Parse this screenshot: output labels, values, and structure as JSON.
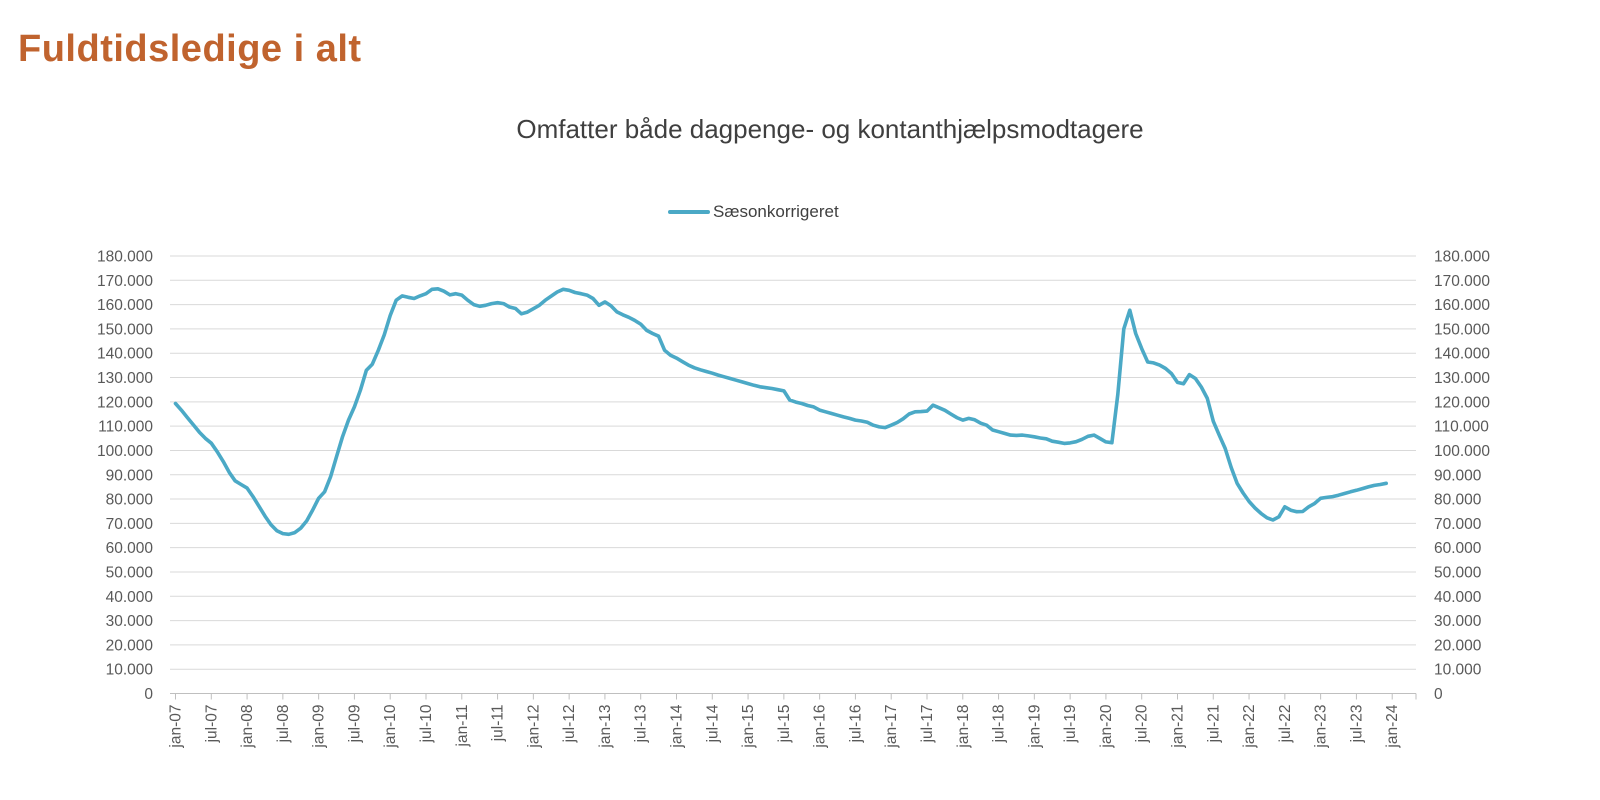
{
  "page": {
    "title": "Fuldtidsledige i alt"
  },
  "chart": {
    "title": "Omfatter både dagpenge- og kontanthjælpsmodtagere",
    "legend": {
      "label": "Sæsonkorrigeret"
    }
  },
  "chart_data": {
    "type": "line",
    "title": "Omfatter både dagpenge- og kontanthjælpsmodtagere",
    "x_monthly_start": "jan-07",
    "x_monthly_end": "dec-23",
    "x_tick_labels": [
      "jan-07",
      "jul-07",
      "jan-08",
      "jul-08",
      "jan-09",
      "jul-09",
      "jan-10",
      "jul-10",
      "jan-11",
      "jul-11",
      "jan-12",
      "jul-12",
      "jan-13",
      "jul-13",
      "jan-14",
      "jul-14",
      "jan-15",
      "jul-15",
      "jan-16",
      "jul-16",
      "jan-17",
      "jul-17",
      "jan-18",
      "jul-18",
      "jan-19",
      "jul-19",
      "jan-20",
      "jul-20",
      "jan-21",
      "jul-21",
      "jan-22",
      "jul-22",
      "jan-23",
      "jul-23",
      "jan-24"
    ],
    "x_tick_every_months": 6,
    "ylim": [
      0,
      180000
    ],
    "y_tick_step": 10000,
    "dual_y_axis": true,
    "grid": true,
    "legend_position": "top-center",
    "colors": {
      "line": "#4BA9C6",
      "grid": "#D9D9D9",
      "axis": "#BFBFBF",
      "tick_text": "#595959",
      "chart_title_text": "#3F3F3F",
      "page_title_text": "#C0632E",
      "legend_text": "#404040"
    },
    "series": [
      {
        "name": "Sæsonkorrigeret",
        "color": "#4BA9C6",
        "values": [
          119300,
          116500,
          113500,
          110500,
          107500,
          105000,
          103000,
          99500,
          95500,
          91000,
          87500,
          86000,
          84500,
          81000,
          77000,
          73000,
          69500,
          67000,
          65800,
          65500,
          66200,
          68000,
          71000,
          75500,
          80300,
          83000,
          89200,
          97400,
          105600,
          112500,
          117900,
          124800,
          133000,
          135500,
          141200,
          147500,
          155500,
          161800,
          163600,
          163000,
          162500,
          163600,
          164500,
          166300,
          166500,
          165500,
          164000,
          164500,
          163900,
          161800,
          160000,
          159300,
          159700,
          160400,
          160800,
          160400,
          159000,
          158400,
          156200,
          156900,
          158300,
          159700,
          161800,
          163500,
          165200,
          166300,
          165900,
          165000,
          164500,
          163900,
          162500,
          159700,
          161100,
          159500,
          157000,
          155800,
          154800,
          153500,
          152000,
          149400,
          148100,
          147000,
          141200,
          139200,
          138000,
          136500,
          135100,
          134000,
          133200,
          132500,
          131800,
          131000,
          130300,
          129600,
          128900,
          128200,
          127500,
          126800,
          126200,
          125800,
          125500,
          125000,
          124500,
          120700,
          119900,
          119300,
          118500,
          117900,
          116600,
          115900,
          115200,
          114500,
          113800,
          113200,
          112500,
          112100,
          111600,
          110400,
          109700,
          109400,
          110400,
          111500,
          113000,
          115000,
          115900,
          116000,
          116200,
          118600,
          117600,
          116500,
          115000,
          113500,
          112500,
          113200,
          112600,
          111200,
          110400,
          108400,
          107700,
          107000,
          106300,
          106200,
          106300,
          106000,
          105600,
          105100,
          104800,
          103800,
          103400,
          102900,
          103100,
          103600,
          104600,
          105800,
          106300,
          104900,
          103500,
          103200,
          123000,
          150000,
          157700,
          148100,
          141900,
          136400,
          136000,
          135100,
          133700,
          131600,
          128000,
          127400,
          131200,
          129600,
          126100,
          121400,
          112000,
          106300,
          100800,
          93000,
          86500,
          82500,
          79000,
          76300,
          74100,
          72300,
          71400,
          72700,
          76800,
          75400,
          74800,
          74900,
          76800,
          78200,
          80300,
          80700,
          81000,
          81600,
          82300,
          83000,
          83600,
          84300,
          85000,
          85600,
          86000,
          86500
        ]
      }
    ]
  }
}
